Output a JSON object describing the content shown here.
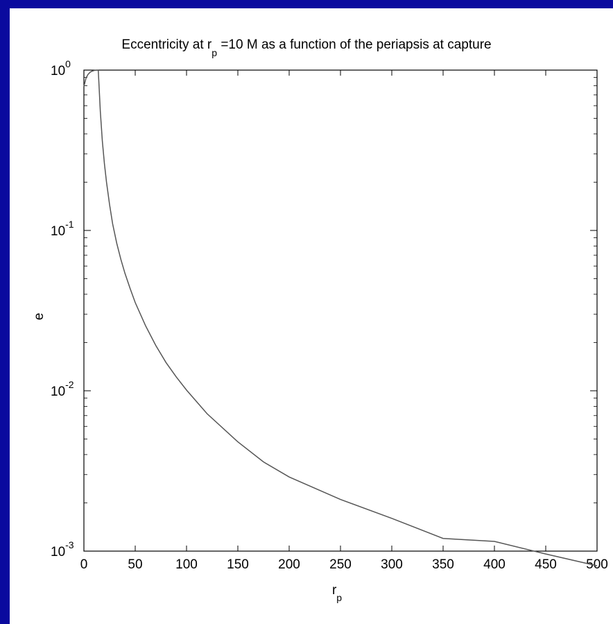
{
  "chart_data": {
    "type": "line",
    "title": {
      "prefix": "Eccentricity at r",
      "sub": "p",
      "suffix": " =10 M as a function of the periapsis at capture"
    },
    "xlabel": {
      "main": "r",
      "sub": "p"
    },
    "ylabel": "e",
    "xscale": "linear",
    "yscale": "log",
    "xlim": [
      0,
      500
    ],
    "ylim": [
      0.001,
      1
    ],
    "x_ticks": [
      0,
      50,
      100,
      150,
      200,
      250,
      300,
      350,
      400,
      450,
      500
    ],
    "y_ticks": [
      {
        "base": "10",
        "exp": "0",
        "value": 1
      },
      {
        "base": "10",
        "exp": "-1",
        "value": 0.1
      },
      {
        "base": "10",
        "exp": "-2",
        "value": 0.01
      },
      {
        "base": "10",
        "exp": "-3",
        "value": 0.001
      }
    ],
    "grid": false,
    "line_color": "#555555",
    "series": [
      {
        "x": [
          0,
          2,
          4,
          6,
          8,
          10,
          12,
          14,
          16,
          18,
          20,
          22,
          25,
          28,
          32,
          36,
          40,
          45,
          50,
          60,
          70,
          80,
          90,
          100,
          120,
          150,
          175,
          200,
          250,
          300,
          350,
          400,
          450,
          500
        ],
        "y": [
          0.79,
          0.89,
          0.94,
          0.97,
          0.985,
          0.995,
          0.999,
          1.0,
          0.55,
          0.36,
          0.26,
          0.2,
          0.145,
          0.11,
          0.083,
          0.066,
          0.054,
          0.0435,
          0.0355,
          0.0255,
          0.0192,
          0.015,
          0.0122,
          0.0101,
          0.0072,
          0.0048,
          0.0036,
          0.0029,
          0.0021,
          0.0016,
          0.0012,
          0.00115,
          0.00096,
          0.00081
        ]
      }
    ]
  }
}
